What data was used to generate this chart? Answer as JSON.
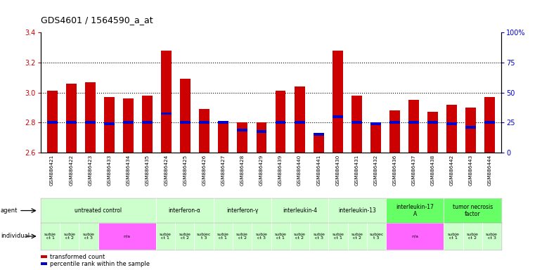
{
  "title": "GDS4601 / 1564590_a_at",
  "samples": [
    "GSM886421",
    "GSM886422",
    "GSM886423",
    "GSM886433",
    "GSM886434",
    "GSM886435",
    "GSM886424",
    "GSM886425",
    "GSM886426",
    "GSM886427",
    "GSM886428",
    "GSM886429",
    "GSM886439",
    "GSM886440",
    "GSM886441",
    "GSM886430",
    "GSM886431",
    "GSM886432",
    "GSM886436",
    "GSM886437",
    "GSM886438",
    "GSM886442",
    "GSM886443",
    "GSM886444"
  ],
  "red_values": [
    3.01,
    3.06,
    3.07,
    2.97,
    2.96,
    2.98,
    3.28,
    3.09,
    2.89,
    2.81,
    2.8,
    2.8,
    3.01,
    3.04,
    2.71,
    3.28,
    2.98,
    2.8,
    2.88,
    2.95,
    2.87,
    2.92,
    2.9,
    2.97
  ],
  "blue_values": [
    2.8,
    2.8,
    2.8,
    2.79,
    2.8,
    2.8,
    2.86,
    2.8,
    2.8,
    2.8,
    2.75,
    2.74,
    2.8,
    2.8,
    2.72,
    2.84,
    2.8,
    2.79,
    2.8,
    2.8,
    2.8,
    2.79,
    2.77,
    2.8
  ],
  "ymin": 2.6,
  "ymax": 3.4,
  "yticks_left": [
    2.6,
    2.8,
    3.0,
    3.2,
    3.4
  ],
  "yticks_right": [
    0,
    25,
    50,
    75,
    100
  ],
  "yticks_right_labels": [
    "0",
    "25",
    "50",
    "75",
    "100%"
  ],
  "dotted_lines": [
    2.8,
    3.0,
    3.2
  ],
  "agents": [
    {
      "label": "untreated control",
      "start": 0,
      "end": 6,
      "color": "#ccffcc"
    },
    {
      "label": "interferon-α",
      "start": 6,
      "end": 9,
      "color": "#ccffcc"
    },
    {
      "label": "interferon-γ",
      "start": 9,
      "end": 12,
      "color": "#ccffcc"
    },
    {
      "label": "interleukin-4",
      "start": 12,
      "end": 15,
      "color": "#ccffcc"
    },
    {
      "label": "interleukin-13",
      "start": 15,
      "end": 18,
      "color": "#ccffcc"
    },
    {
      "label": "interleukin-17\nA",
      "start": 18,
      "end": 21,
      "color": "#66ff66"
    },
    {
      "label": "tumor necrosis\nfactor",
      "start": 21,
      "end": 24,
      "color": "#66ff66"
    }
  ],
  "individuals": [
    {
      "label": "subje\nct 1",
      "start": 0,
      "end": 1,
      "color": "#ccffcc"
    },
    {
      "label": "subje\nct 2",
      "start": 1,
      "end": 2,
      "color": "#ccffcc"
    },
    {
      "label": "subje\nct 3",
      "start": 2,
      "end": 3,
      "color": "#ccffcc"
    },
    {
      "label": "n/a",
      "start": 3,
      "end": 6,
      "color": "#ff66ff"
    },
    {
      "label": "subje\nct 1",
      "start": 6,
      "end": 7,
      "color": "#ccffcc"
    },
    {
      "label": "subje\nct 2",
      "start": 7,
      "end": 8,
      "color": "#ccffcc"
    },
    {
      "label": "subjec\nt 3",
      "start": 8,
      "end": 9,
      "color": "#ccffcc"
    },
    {
      "label": "subje\nct 1",
      "start": 9,
      "end": 10,
      "color": "#ccffcc"
    },
    {
      "label": "subje\nct 2",
      "start": 10,
      "end": 11,
      "color": "#ccffcc"
    },
    {
      "label": "subje\nct 3",
      "start": 11,
      "end": 12,
      "color": "#ccffcc"
    },
    {
      "label": "subje\nct 1",
      "start": 12,
      "end": 13,
      "color": "#ccffcc"
    },
    {
      "label": "subje\nct 2",
      "start": 13,
      "end": 14,
      "color": "#ccffcc"
    },
    {
      "label": "subje\nct 3",
      "start": 14,
      "end": 15,
      "color": "#ccffcc"
    },
    {
      "label": "subje\nct 1",
      "start": 15,
      "end": 16,
      "color": "#ccffcc"
    },
    {
      "label": "subje\nct 2",
      "start": 16,
      "end": 17,
      "color": "#ccffcc"
    },
    {
      "label": "subjec\nt 3",
      "start": 17,
      "end": 18,
      "color": "#ccffcc"
    },
    {
      "label": "n/a",
      "start": 18,
      "end": 21,
      "color": "#ff66ff"
    },
    {
      "label": "subje\nct 1",
      "start": 21,
      "end": 22,
      "color": "#ccffcc"
    },
    {
      "label": "subje\nct 2",
      "start": 22,
      "end": 23,
      "color": "#ccffcc"
    },
    {
      "label": "subje\nct 3",
      "start": 23,
      "end": 24,
      "color": "#ccffcc"
    }
  ],
  "bar_width": 0.55,
  "red_color": "#cc0000",
  "blue_color": "#0000cc",
  "bg_color": "#ffffff",
  "chart_bg": "#e8e8e8",
  "tick_label_color_left": "#cc0000",
  "tick_label_color_right": "#0000cc"
}
